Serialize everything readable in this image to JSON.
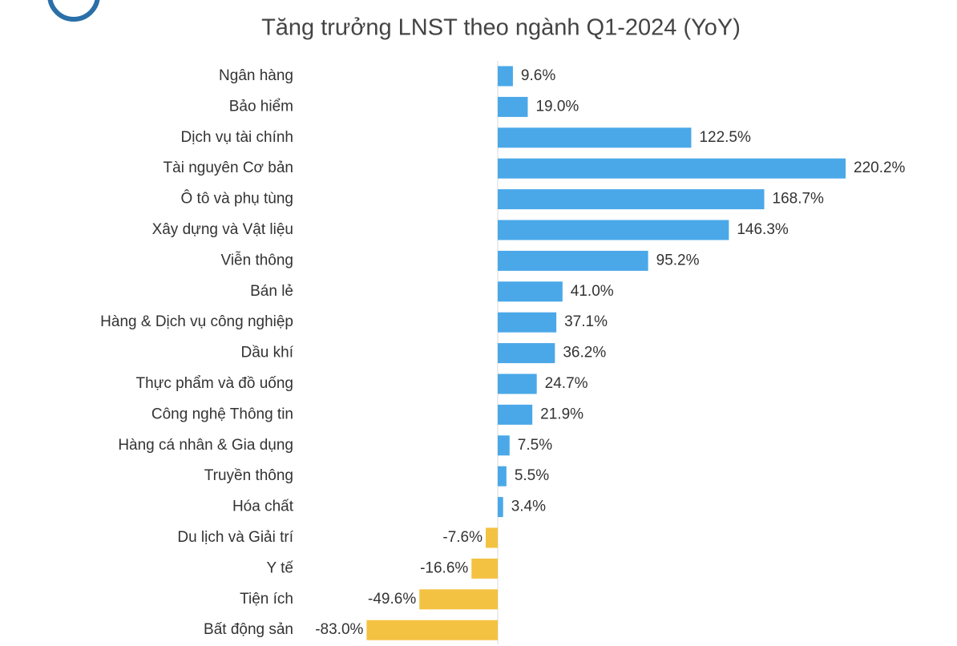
{
  "chart_data": {
    "type": "bar",
    "orientation": "horizontal",
    "title": "Tăng trưởng LNST theo ngành Q1-2024 (YoY)",
    "categories": [
      "Ngân hàng",
      "Bảo hiểm",
      "Dịch vụ tài chính",
      "Tài nguyên Cơ bản",
      "Ô tô và phụ tùng",
      "Xây dựng và Vật liệu",
      "Viễn thông",
      "Bán lẻ",
      "Hàng & Dịch vụ công nghiệp",
      "Dầu khí",
      "Thực phẩm và đồ uống",
      "Công nghệ Thông tin",
      "Hàng cá nhân & Gia dụng",
      "Truyền thông",
      "Hóa chất",
      "Du lịch và Giải trí",
      "Y tế",
      "Tiện ích",
      "Bất động sản"
    ],
    "values": [
      9.6,
      19.0,
      122.5,
      220.2,
      168.7,
      146.3,
      95.2,
      41.0,
      37.1,
      36.2,
      24.7,
      21.9,
      7.5,
      5.5,
      3.4,
      -7.6,
      -16.6,
      -49.6,
      -83.0
    ],
    "value_labels": [
      "9.6%",
      "19.0%",
      "122.5%",
      "220.2%",
      "168.7%",
      "146.3%",
      "95.2%",
      "41.0%",
      "37.1%",
      "36.2%",
      "24.7%",
      "21.9%",
      "7.5%",
      "5.5%",
      "3.4%",
      "-7.6%",
      "-16.6%",
      "-49.6%",
      "-83.0%"
    ],
    "color": "#4aa8e8",
    "negative_color": "#f4c242",
    "negative_label_color": "#e8312a"
  }
}
